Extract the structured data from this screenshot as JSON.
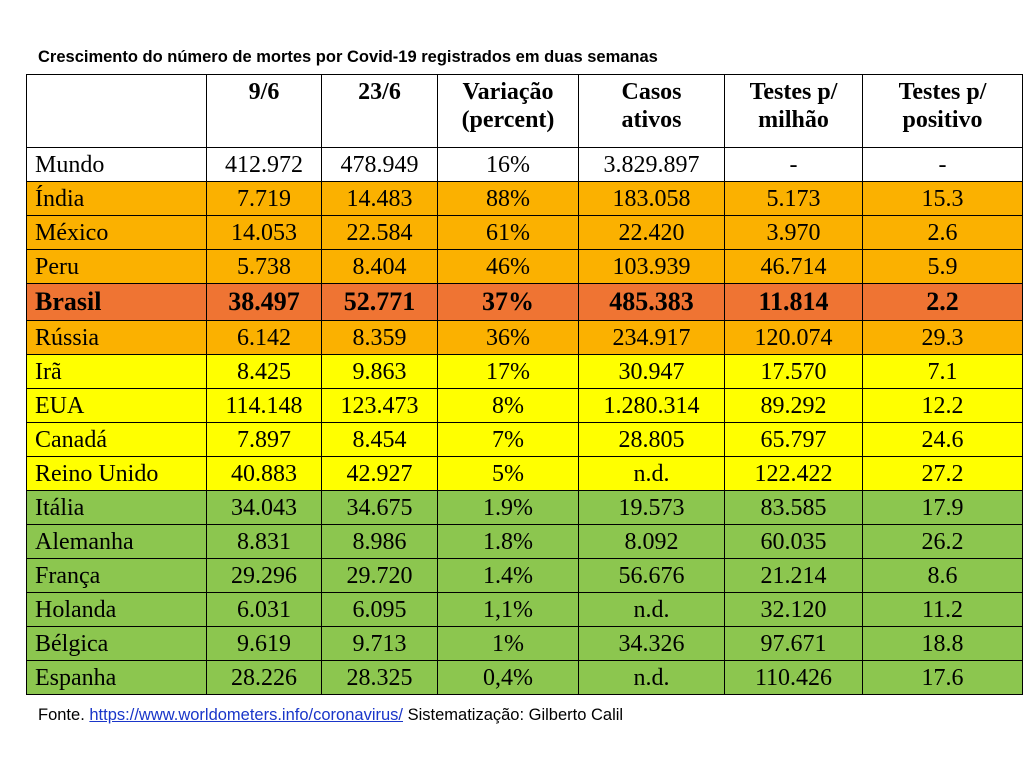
{
  "title": "Crescimento do número de mortes por Covid-19 registrados em duas semanas",
  "headers": [
    "",
    "9/6",
    "23/6",
    "Variação (percent)",
    "Casos ativos",
    "Testes p/ milhão",
    "Testes p/ positivo"
  ],
  "header_lines": [
    [
      "",
      ""
    ],
    [
      "9/6",
      ""
    ],
    [
      "23/6",
      ""
    ],
    [
      "Variação",
      "(percent)"
    ],
    [
      "Casos",
      "ativos"
    ],
    [
      "Testes p/",
      "milhão"
    ],
    [
      "Testes p/",
      "positivo"
    ]
  ],
  "colors": {
    "white": "#ffffff",
    "orange": "#fbb100",
    "red_orange": "#ef7433",
    "yellow": "#ffff00",
    "green": "#8cc64f"
  },
  "rows": [
    {
      "cells": [
        "Mundo",
        "412.972",
        "478.949",
        "16%",
        "3.829.897",
        "-",
        "-"
      ],
      "color": "#ffffff",
      "bold": false
    },
    {
      "cells": [
        "Índia",
        "7.719",
        "14.483",
        "88%",
        "183.058",
        "5.173",
        "15.3"
      ],
      "color": "#fbb100",
      "bold": false
    },
    {
      "cells": [
        "México",
        "14.053",
        "22.584",
        "61%",
        "22.420",
        "3.970",
        "2.6"
      ],
      "color": "#fbb100",
      "bold": false
    },
    {
      "cells": [
        "Peru",
        "5.738",
        "8.404",
        "46%",
        "103.939",
        "46.714",
        "5.9"
      ],
      "color": "#fbb100",
      "bold": false
    },
    {
      "cells": [
        "Brasil",
        "38.497",
        "52.771",
        "37%",
        "485.383",
        "11.814",
        "2.2"
      ],
      "color": "#ef7433",
      "bold": true
    },
    {
      "cells": [
        "Rússia",
        "6.142",
        "8.359",
        "36%",
        "234.917",
        "120.074",
        "29.3"
      ],
      "color": "#fbb100",
      "bold": false
    },
    {
      "cells": [
        "Irã",
        "8.425",
        "9.863",
        "17%",
        "30.947",
        "17.570",
        "7.1"
      ],
      "color": "#ffff00",
      "bold": false
    },
    {
      "cells": [
        "EUA",
        "114.148",
        "123.473",
        "8%",
        "1.280.314",
        "89.292",
        "12.2"
      ],
      "color": "#ffff00",
      "bold": false
    },
    {
      "cells": [
        "Canadá",
        "7.897",
        "8.454",
        "7%",
        "28.805",
        "65.797",
        "24.6"
      ],
      "color": "#ffff00",
      "bold": false
    },
    {
      "cells": [
        "Reino Unido",
        "40.883",
        "42.927",
        "5%",
        "n.d.",
        "122.422",
        "27.2"
      ],
      "color": "#ffff00",
      "bold": false
    },
    {
      "cells": [
        "Itália",
        "34.043",
        "34.675",
        "1.9%",
        "19.573",
        "83.585",
        "17.9"
      ],
      "color": "#8cc64f",
      "bold": false
    },
    {
      "cells": [
        "Alemanha",
        "8.831",
        "8.986",
        "1.8%",
        "8.092",
        "60.035",
        "26.2"
      ],
      "color": "#8cc64f",
      "bold": false
    },
    {
      "cells": [
        "França",
        "29.296",
        "29.720",
        "1.4%",
        "56.676",
        "21.214",
        "8.6"
      ],
      "color": "#8cc64f",
      "bold": false
    },
    {
      "cells": [
        "Holanda",
        "6.031",
        "6.095",
        "1,1%",
        "n.d.",
        "32.120",
        "11.2"
      ],
      "color": "#8cc64f",
      "bold": false
    },
    {
      "cells": [
        "Bélgica",
        "9.619",
        "9.713",
        "1%",
        "34.326",
        "97.671",
        "18.8"
      ],
      "color": "#8cc64f",
      "bold": false
    },
    {
      "cells": [
        "Espanha",
        "28.226",
        "28.325",
        "0,4%",
        "n.d.",
        "110.426",
        "17.6"
      ],
      "color": "#8cc64f",
      "bold": false
    }
  ],
  "footer": {
    "prefix": "Fonte.",
    "link_text": "https://www.worldometers.info/coronavirus/",
    "suffix": "Sistematização: Gilberto Calil"
  }
}
